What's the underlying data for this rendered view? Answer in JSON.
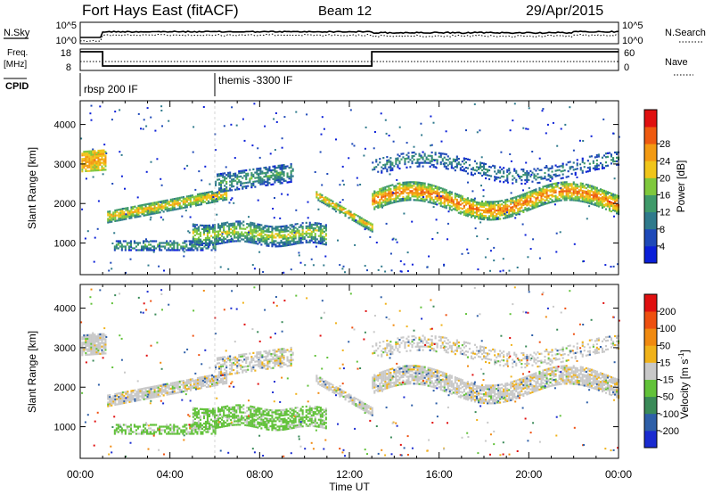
{
  "header": {
    "station": "Fort Hays East (fitACF)",
    "beam": "Beam 12",
    "date": "29/Apr/2015"
  },
  "top_panels": {
    "nsky_label": "N.Sky",
    "nsky_ticks": [
      "10^5",
      "10^0"
    ],
    "nsearch_label": "N.Search",
    "nsearch_ticks": [
      "10^5",
      "10^0"
    ],
    "freq_label_line1": "Freq.",
    "freq_label_line2": "[MHz]",
    "freq_ticks": [
      "18",
      "8"
    ],
    "nave_label": "Nave",
    "nave_ticks": [
      "60",
      "0"
    ],
    "cpid_label": "CPID",
    "cpid_segments": [
      {
        "label": "rbsp 200 IF",
        "start_hour": 0
      },
      {
        "label": "themis -3300 IF",
        "start_hour": 6
      }
    ]
  },
  "chart_data": [
    {
      "type": "heatmap",
      "name": "power-panel",
      "ylabel": "Slant Range [km]",
      "xlabel": "",
      "yticks": [
        "1000",
        "2000",
        "3000",
        "4000"
      ],
      "ylim": [
        200,
        4600
      ],
      "xlim_hours": [
        0,
        24
      ],
      "colorbar": {
        "label": "Power [dB]",
        "ticks": [
          "4",
          "8",
          "12",
          "16",
          "20",
          "24",
          "28"
        ],
        "colors": [
          "#0a1fd8",
          "#1e49b8",
          "#2f7a8c",
          "#3f9a6a",
          "#7fc83c",
          "#f0c51a",
          "#f39a12",
          "#ee5a10",
          "#e01010"
        ]
      }
    },
    {
      "type": "heatmap",
      "name": "velocity-panel",
      "ylabel": "Slant Range [km]",
      "xlabel": "Time UT",
      "yticks": [
        "1000",
        "2000",
        "3000",
        "4000"
      ],
      "ylim": [
        200,
        4600
      ],
      "xlim_hours": [
        0,
        24
      ],
      "xticks": [
        "00:00",
        "04:00",
        "08:00",
        "12:00",
        "16:00",
        "20:00",
        "00:00"
      ],
      "colorbar": {
        "label": "Velocity [m s",
        "label_sup": "-1",
        "label_end": "]",
        "ticks": [
          "200",
          "100",
          "50",
          "15",
          "-15",
          "-50",
          "-100",
          "-200"
        ],
        "colors": [
          "#1a2bd0",
          "#2e5fa8",
          "#3a8a58",
          "#62c23a",
          "#c8c8c8",
          "#f0b21a",
          "#f08a10",
          "#ee5010",
          "#e01010"
        ]
      }
    }
  ]
}
